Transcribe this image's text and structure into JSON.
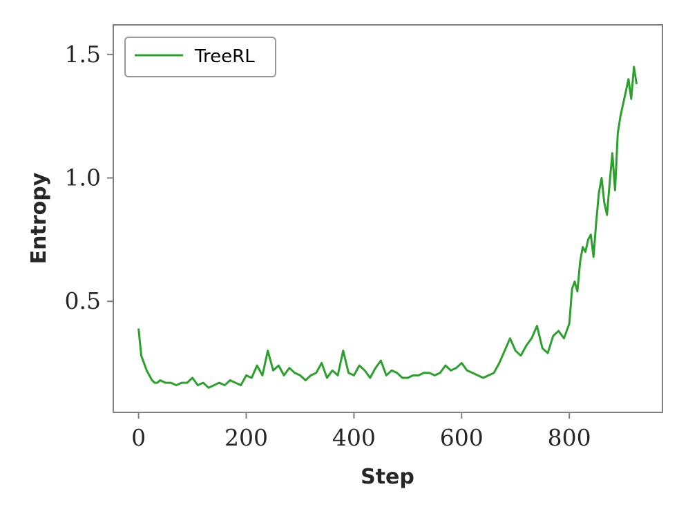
{
  "chart_data": {
    "type": "line",
    "xlabel": "Step",
    "ylabel": "Entropy",
    "xlim": [
      -47,
      973
    ],
    "ylim": [
      0.05,
      1.62
    ],
    "x_ticks": [
      0,
      200,
      400,
      600,
      800
    ],
    "y_ticks": [
      0.5,
      1.0,
      1.5
    ],
    "x_tick_labels": [
      "0",
      "200",
      "400",
      "600",
      "800"
    ],
    "y_tick_labels": [
      "0.5",
      "1.0",
      "1.5"
    ],
    "grid": false,
    "legend_position": "upper-left",
    "series": [
      {
        "name": "TreeRL",
        "color": "#2ca02c",
        "x": [
          0,
          5,
          10,
          15,
          20,
          25,
          30,
          35,
          40,
          50,
          60,
          70,
          80,
          90,
          100,
          110,
          120,
          130,
          140,
          150,
          160,
          170,
          180,
          190,
          200,
          210,
          220,
          230,
          240,
          250,
          260,
          270,
          280,
          290,
          300,
          310,
          320,
          330,
          340,
          350,
          360,
          370,
          380,
          390,
          400,
          410,
          420,
          430,
          440,
          450,
          460,
          470,
          480,
          490,
          500,
          510,
          520,
          530,
          540,
          550,
          560,
          570,
          580,
          590,
          600,
          610,
          620,
          630,
          640,
          650,
          660,
          670,
          680,
          690,
          700,
          710,
          720,
          730,
          740,
          750,
          760,
          770,
          780,
          790,
          800,
          805,
          810,
          815,
          820,
          825,
          830,
          835,
          840,
          845,
          850,
          855,
          860,
          865,
          870,
          875,
          880,
          885,
          890,
          895,
          900,
          905,
          910,
          915,
          920,
          925
        ],
        "values": [
          0.39,
          0.28,
          0.25,
          0.22,
          0.2,
          0.18,
          0.17,
          0.17,
          0.18,
          0.17,
          0.17,
          0.16,
          0.17,
          0.17,
          0.19,
          0.16,
          0.17,
          0.15,
          0.16,
          0.17,
          0.16,
          0.18,
          0.17,
          0.16,
          0.2,
          0.19,
          0.24,
          0.2,
          0.3,
          0.22,
          0.24,
          0.2,
          0.23,
          0.21,
          0.2,
          0.18,
          0.2,
          0.21,
          0.25,
          0.19,
          0.22,
          0.2,
          0.3,
          0.21,
          0.2,
          0.24,
          0.22,
          0.19,
          0.23,
          0.26,
          0.2,
          0.22,
          0.21,
          0.19,
          0.19,
          0.2,
          0.2,
          0.21,
          0.21,
          0.2,
          0.21,
          0.24,
          0.22,
          0.23,
          0.25,
          0.22,
          0.21,
          0.2,
          0.19,
          0.2,
          0.21,
          0.25,
          0.3,
          0.35,
          0.3,
          0.28,
          0.32,
          0.35,
          0.4,
          0.31,
          0.29,
          0.36,
          0.38,
          0.35,
          0.41,
          0.55,
          0.58,
          0.54,
          0.66,
          0.72,
          0.7,
          0.75,
          0.77,
          0.68,
          0.82,
          0.94,
          1.0,
          0.9,
          0.85,
          0.98,
          1.1,
          0.95,
          1.18,
          1.25,
          1.3,
          1.35,
          1.4,
          1.32,
          1.45,
          1.38
        ]
      }
    ]
  }
}
